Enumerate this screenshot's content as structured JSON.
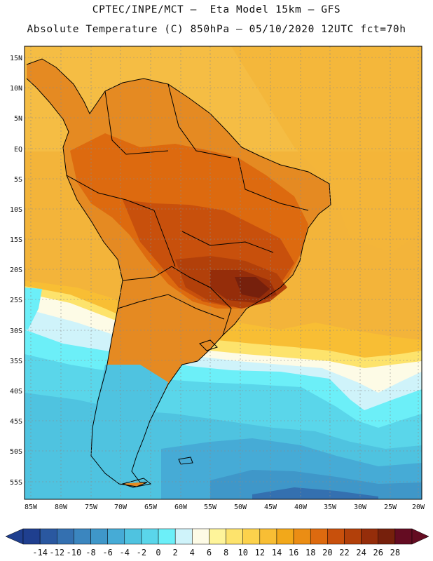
{
  "header": {
    "line1": "CPTEC/INPE/MCT –  Eta Model 15km – GFS",
    "line2": "Absolute Temperature (C) 850hPa – 05/10/2020 12UTC fct=70h"
  },
  "axes": {
    "lat_labels": [
      "15N",
      "10N",
      "5N",
      "EQ",
      "5S",
      "10S",
      "15S",
      "20S",
      "25S",
      "30S",
      "35S",
      "40S",
      "45S",
      "50S",
      "55S"
    ],
    "lon_labels": [
      "85W",
      "80W",
      "75W",
      "70W",
      "65W",
      "60W",
      "55W",
      "50W",
      "45W",
      "40W",
      "35W",
      "30W",
      "25W",
      "20W"
    ]
  },
  "colorbar": {
    "labels": [
      "-14",
      "-12",
      "-10",
      "-8",
      "-6",
      "-4",
      "-2",
      "0",
      "2",
      "4",
      "6",
      "8",
      "10",
      "12",
      "14",
      "16",
      "18",
      "20",
      "22",
      "24",
      "26",
      "28"
    ],
    "colors": [
      "#1f3f8f",
      "#2a58a0",
      "#3470b0",
      "#3b86bf",
      "#3f97c9",
      "#46abd6",
      "#4fc3e0",
      "#5ad6ea",
      "#6ceff8",
      "#cff3fa",
      "#fdfbe6",
      "#fef49a",
      "#fde36c",
      "#fcd24c",
      "#f8be34",
      "#f2a81a",
      "#eb8d14",
      "#dd6a0f",
      "#c8500c",
      "#b2400a",
      "#952d0a",
      "#76200c",
      "#640c22"
    ]
  },
  "map": {
    "ocean_color": "#f3b43a",
    "land_color": "#e58a22",
    "coast_color": "#000000",
    "grid_color": "#8a8a8a"
  }
}
